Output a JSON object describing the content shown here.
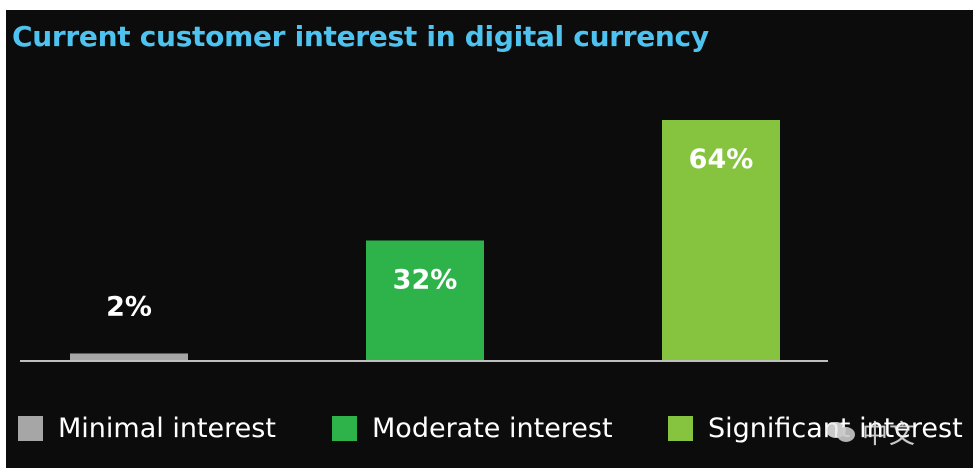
{
  "colors": {
    "background": "#0c0c0c",
    "title": "#4fc3ef",
    "axis": "#bfbfbf",
    "label": "#ffffff"
  },
  "chart_data": {
    "type": "bar",
    "title": "Current customer interest in digital currency",
    "categories": [
      "Minimal interest",
      "Moderate interest",
      "Significant interest"
    ],
    "values": [
      2,
      32,
      64
    ],
    "labels": [
      "2%",
      "32%",
      "64%"
    ],
    "colors": [
      "#a6a6a6",
      "#2db34a",
      "#86c440"
    ],
    "ylim": [
      0,
      64
    ],
    "grid": false,
    "legend_position": "bottom",
    "xlabel": "",
    "ylabel": ""
  },
  "legend": {
    "items": [
      {
        "label": "Minimal interest",
        "color": "#a6a6a6"
      },
      {
        "label": "Moderate interest",
        "color": "#2db34a"
      },
      {
        "label": "Significant interest",
        "color": "#86c440"
      }
    ]
  },
  "watermark": {
    "text": "中文",
    "icon": "chat-bubbles-icon"
  }
}
